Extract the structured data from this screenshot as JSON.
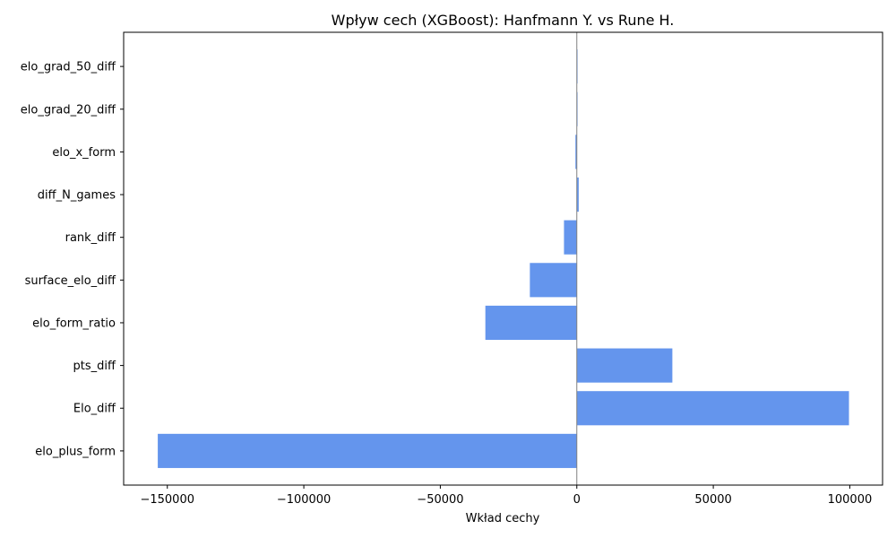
{
  "chart_data": {
    "type": "bar",
    "orientation": "horizontal",
    "title": "Wpływ cech (XGBoost): Hanfmann Y. vs Rune H.",
    "xlabel": "Wkład cechy",
    "ylabel": "",
    "categories": [
      "elo_plus_form",
      "Elo_diff",
      "pts_diff",
      "elo_form_ratio",
      "surface_elo_diff",
      "rank_diff",
      "diff_N_games",
      "elo_x_form",
      "elo_grad_20_diff",
      "elo_grad_50_diff"
    ],
    "values": [
      -153500,
      99700,
      35000,
      -33500,
      -17200,
      -4700,
      700,
      -500,
      0,
      0
    ],
    "xlim": [
      -166000,
      112000
    ],
    "xticks": [
      -150000,
      -100000,
      -50000,
      0,
      50000,
      100000
    ],
    "xtick_labels": [
      "−150000",
      "−100000",
      "−50000",
      "0",
      "50000",
      "100000"
    ],
    "bar_color": "#6495ed",
    "zero_line_color": "#808080",
    "grid": false,
    "legend": "none"
  }
}
